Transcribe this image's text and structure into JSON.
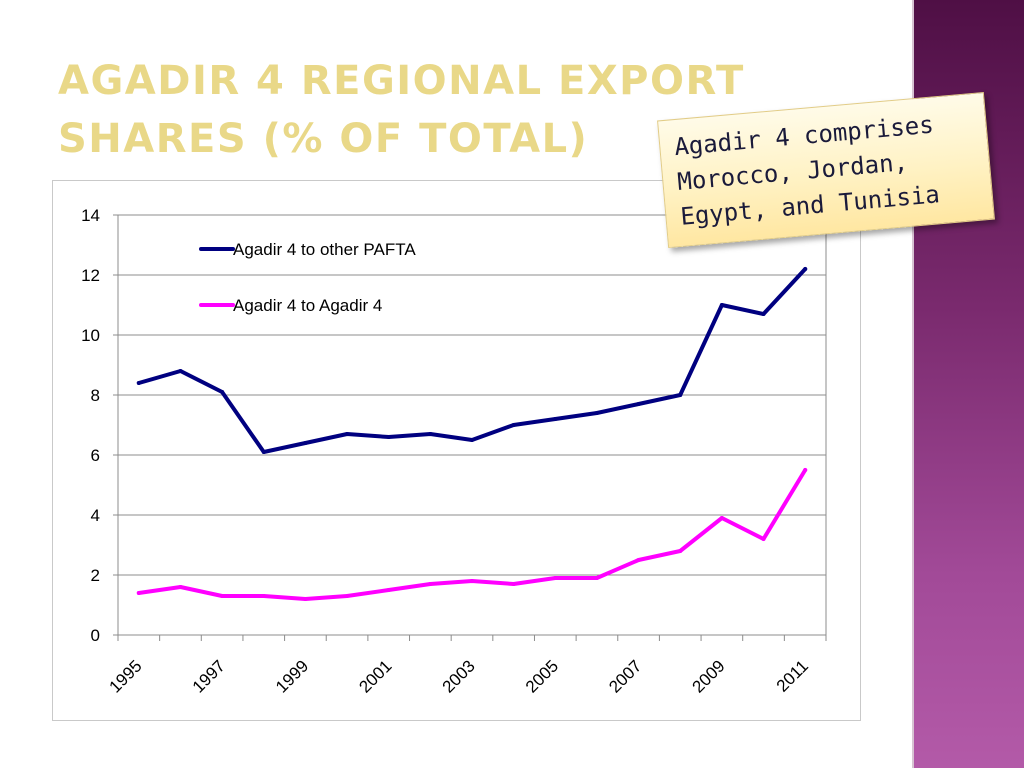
{
  "slide": {
    "title": "Agadir 4 Regional Export Shares (% of Total)",
    "note": "Agadir 4 comprises Morocco, Jordan, Egypt, and Tunisia"
  },
  "colors": {
    "title": "#e9d888",
    "accent_bar": "#7a2a6e",
    "grid": "#8c8c8c"
  },
  "chart_data": {
    "type": "line",
    "title": "",
    "xlabel": "",
    "ylabel": "",
    "ylim": [
      0,
      14
    ],
    "yticks": [
      "0",
      "2",
      "4",
      "6",
      "8",
      "10",
      "12",
      "14"
    ],
    "x": [
      1995,
      1996,
      1997,
      1998,
      1999,
      2000,
      2001,
      2002,
      2003,
      2004,
      2005,
      2006,
      2007,
      2008,
      2009,
      2010,
      2011
    ],
    "xtick_labels": [
      "1995",
      "1997",
      "1999",
      "2001",
      "2003",
      "2005",
      "2007",
      "2009",
      "2011"
    ],
    "grid": true,
    "legend_position": "top-left",
    "series": [
      {
        "name": "Agadir 4 to other PAFTA",
        "color": "#000080",
        "values": [
          8.4,
          8.8,
          8.1,
          6.1,
          6.4,
          6.7,
          6.6,
          6.7,
          6.5,
          7.0,
          7.2,
          7.4,
          7.7,
          8.0,
          11.0,
          10.7,
          12.2
        ]
      },
      {
        "name": "Agadir 4 to Agadir 4",
        "color": "#ff00ff",
        "values": [
          1.4,
          1.6,
          1.3,
          1.3,
          1.2,
          1.3,
          1.5,
          1.7,
          1.8,
          1.7,
          1.9,
          1.9,
          2.5,
          2.8,
          3.9,
          3.2,
          5.5
        ]
      }
    ]
  }
}
